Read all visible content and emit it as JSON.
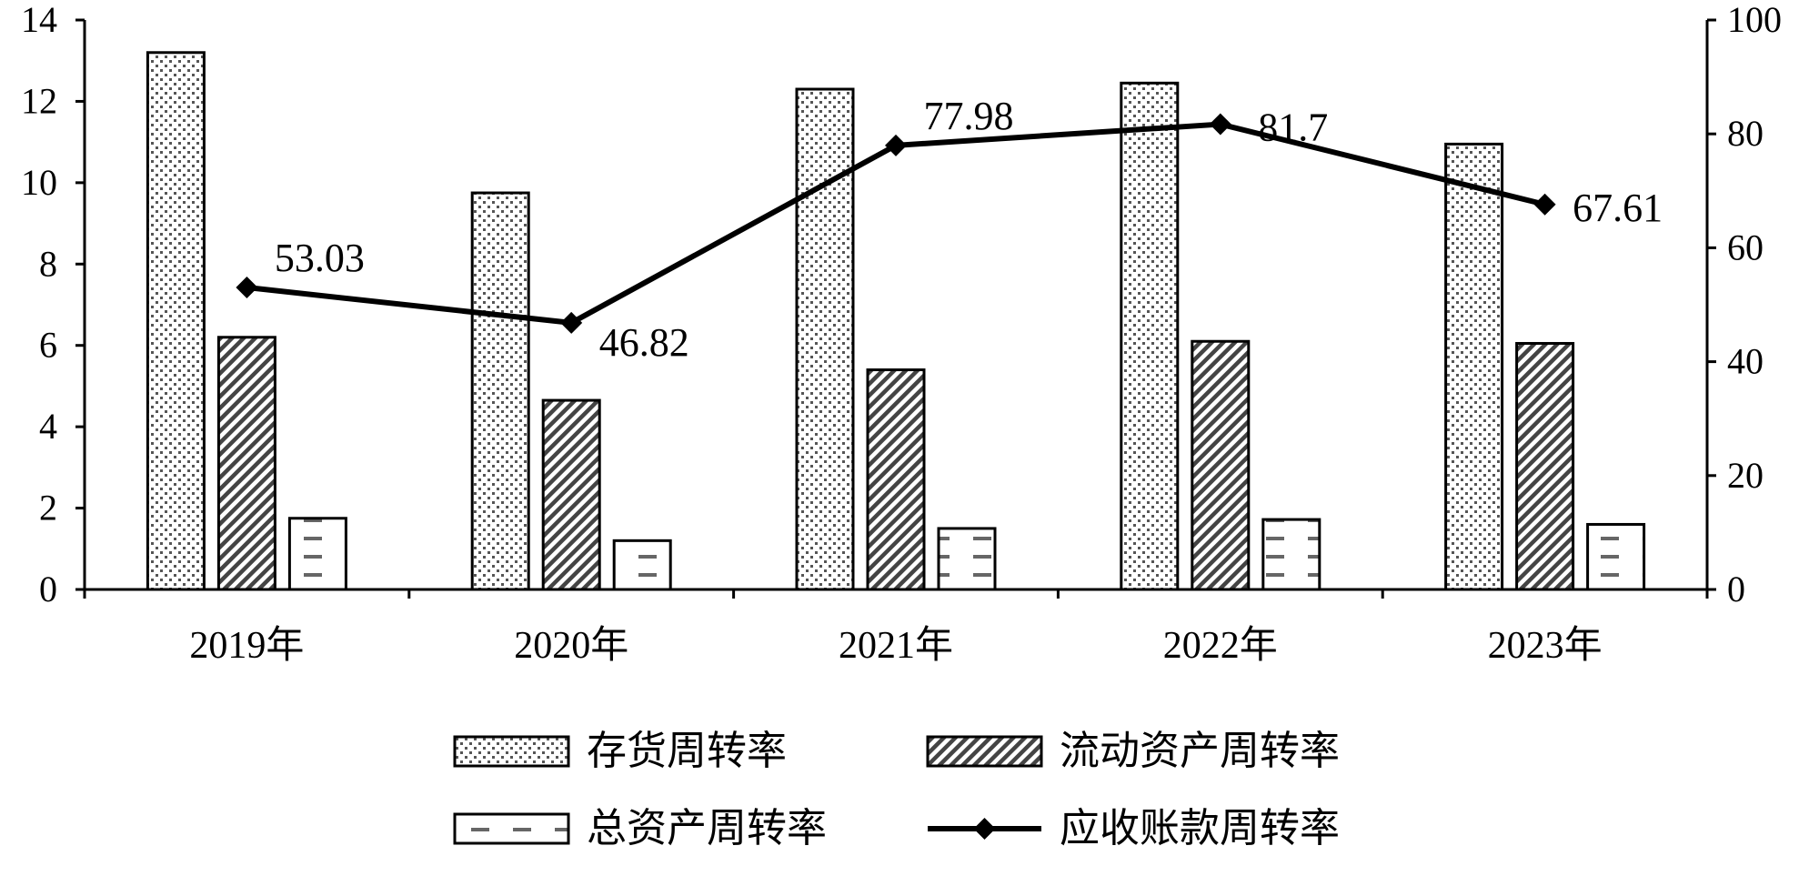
{
  "chart_data": {
    "type": "bar",
    "categories": [
      "2019年",
      "2020年",
      "2021年",
      "2022年",
      "2023年"
    ],
    "series": [
      {
        "name": "存货周转率",
        "kind": "bar",
        "axis": "left",
        "pattern": "dots",
        "values": [
          13.2,
          9.75,
          12.3,
          12.45,
          10.95
        ]
      },
      {
        "name": "流动资产周转率",
        "kind": "bar",
        "axis": "left",
        "pattern": "diagonal-hatch",
        "values": [
          6.2,
          4.65,
          5.4,
          6.1,
          6.05
        ]
      },
      {
        "name": "总资产周转率",
        "kind": "bar",
        "axis": "left",
        "pattern": "dashes",
        "values": [
          1.75,
          1.2,
          1.5,
          1.72,
          1.6
        ]
      },
      {
        "name": "应收账款周转率",
        "kind": "line",
        "axis": "right",
        "marker": "diamond",
        "values": [
          53.03,
          46.82,
          77.98,
          81.7,
          67.61
        ],
        "labels": [
          "53.03",
          "46.82",
          "77.98",
          "81.7",
          "67.61"
        ]
      }
    ],
    "y_left": {
      "min": 0,
      "max": 14,
      "ticks": [
        0,
        2,
        4,
        6,
        8,
        10,
        12,
        14
      ]
    },
    "y_right": {
      "min": 0,
      "max": 100,
      "ticks": [
        0,
        20,
        40,
        60,
        80,
        100
      ]
    },
    "grid": false,
    "legend_position": "bottom",
    "colors": {
      "line": "#000000",
      "bar_fill": "#ffffff",
      "bar_stroke": "#000000"
    }
  }
}
